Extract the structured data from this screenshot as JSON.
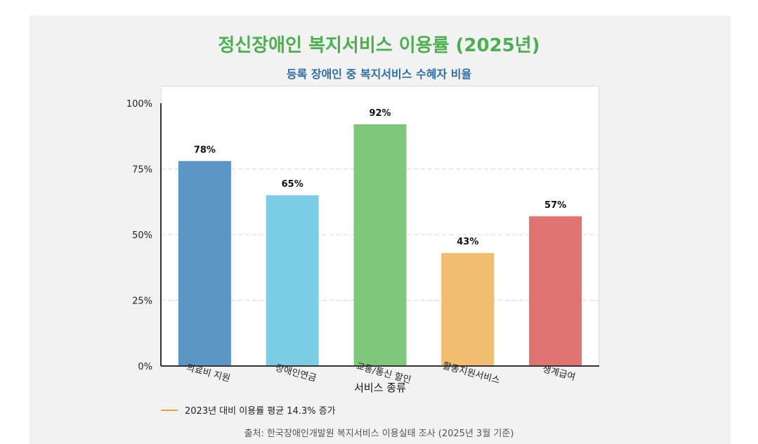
{
  "title": "정신장애인 복지서비스 이용률 (2025년)",
  "subtitle": "등록 장애인 중 복지서비스 수혜자 비율",
  "legend_note": "2023년 대비 이용률 평균 14.3% 증가",
  "source": "출처: 한국장애인개발원 복지서비스 이용실태 조사 (2025년 3월 기준)",
  "colors": {
    "title": "#4caf50",
    "subtitle": "#2f6fa8",
    "legend_line": "#f0a030",
    "bars": [
      "#5b95c5",
      "#7ecde8",
      "#7dc67a",
      "#f1bd6e",
      "#e07471"
    ]
  },
  "chart_data": {
    "type": "bar",
    "title": "정신장애인 복지서비스 이용률 (2025년)",
    "subtitle": "등록 장애인 중 복지서비스 수혜자 비율",
    "categories": [
      "의료비 지원",
      "장애인연금",
      "교통/통신 할인",
      "활동지원서비스",
      "생계급여"
    ],
    "values": [
      78,
      65,
      92,
      43,
      57
    ],
    "value_labels": [
      "78%",
      "65%",
      "92%",
      "43%",
      "57%"
    ],
    "xlabel": "서비스 종류",
    "ylabel": "",
    "ylim": [
      0,
      100
    ],
    "yticks": [
      0,
      25,
      50,
      75,
      100
    ],
    "ytick_labels": [
      "0%",
      "25%",
      "50%",
      "75%",
      "100%"
    ],
    "grid": true,
    "legend_placement": "bottom-left"
  }
}
